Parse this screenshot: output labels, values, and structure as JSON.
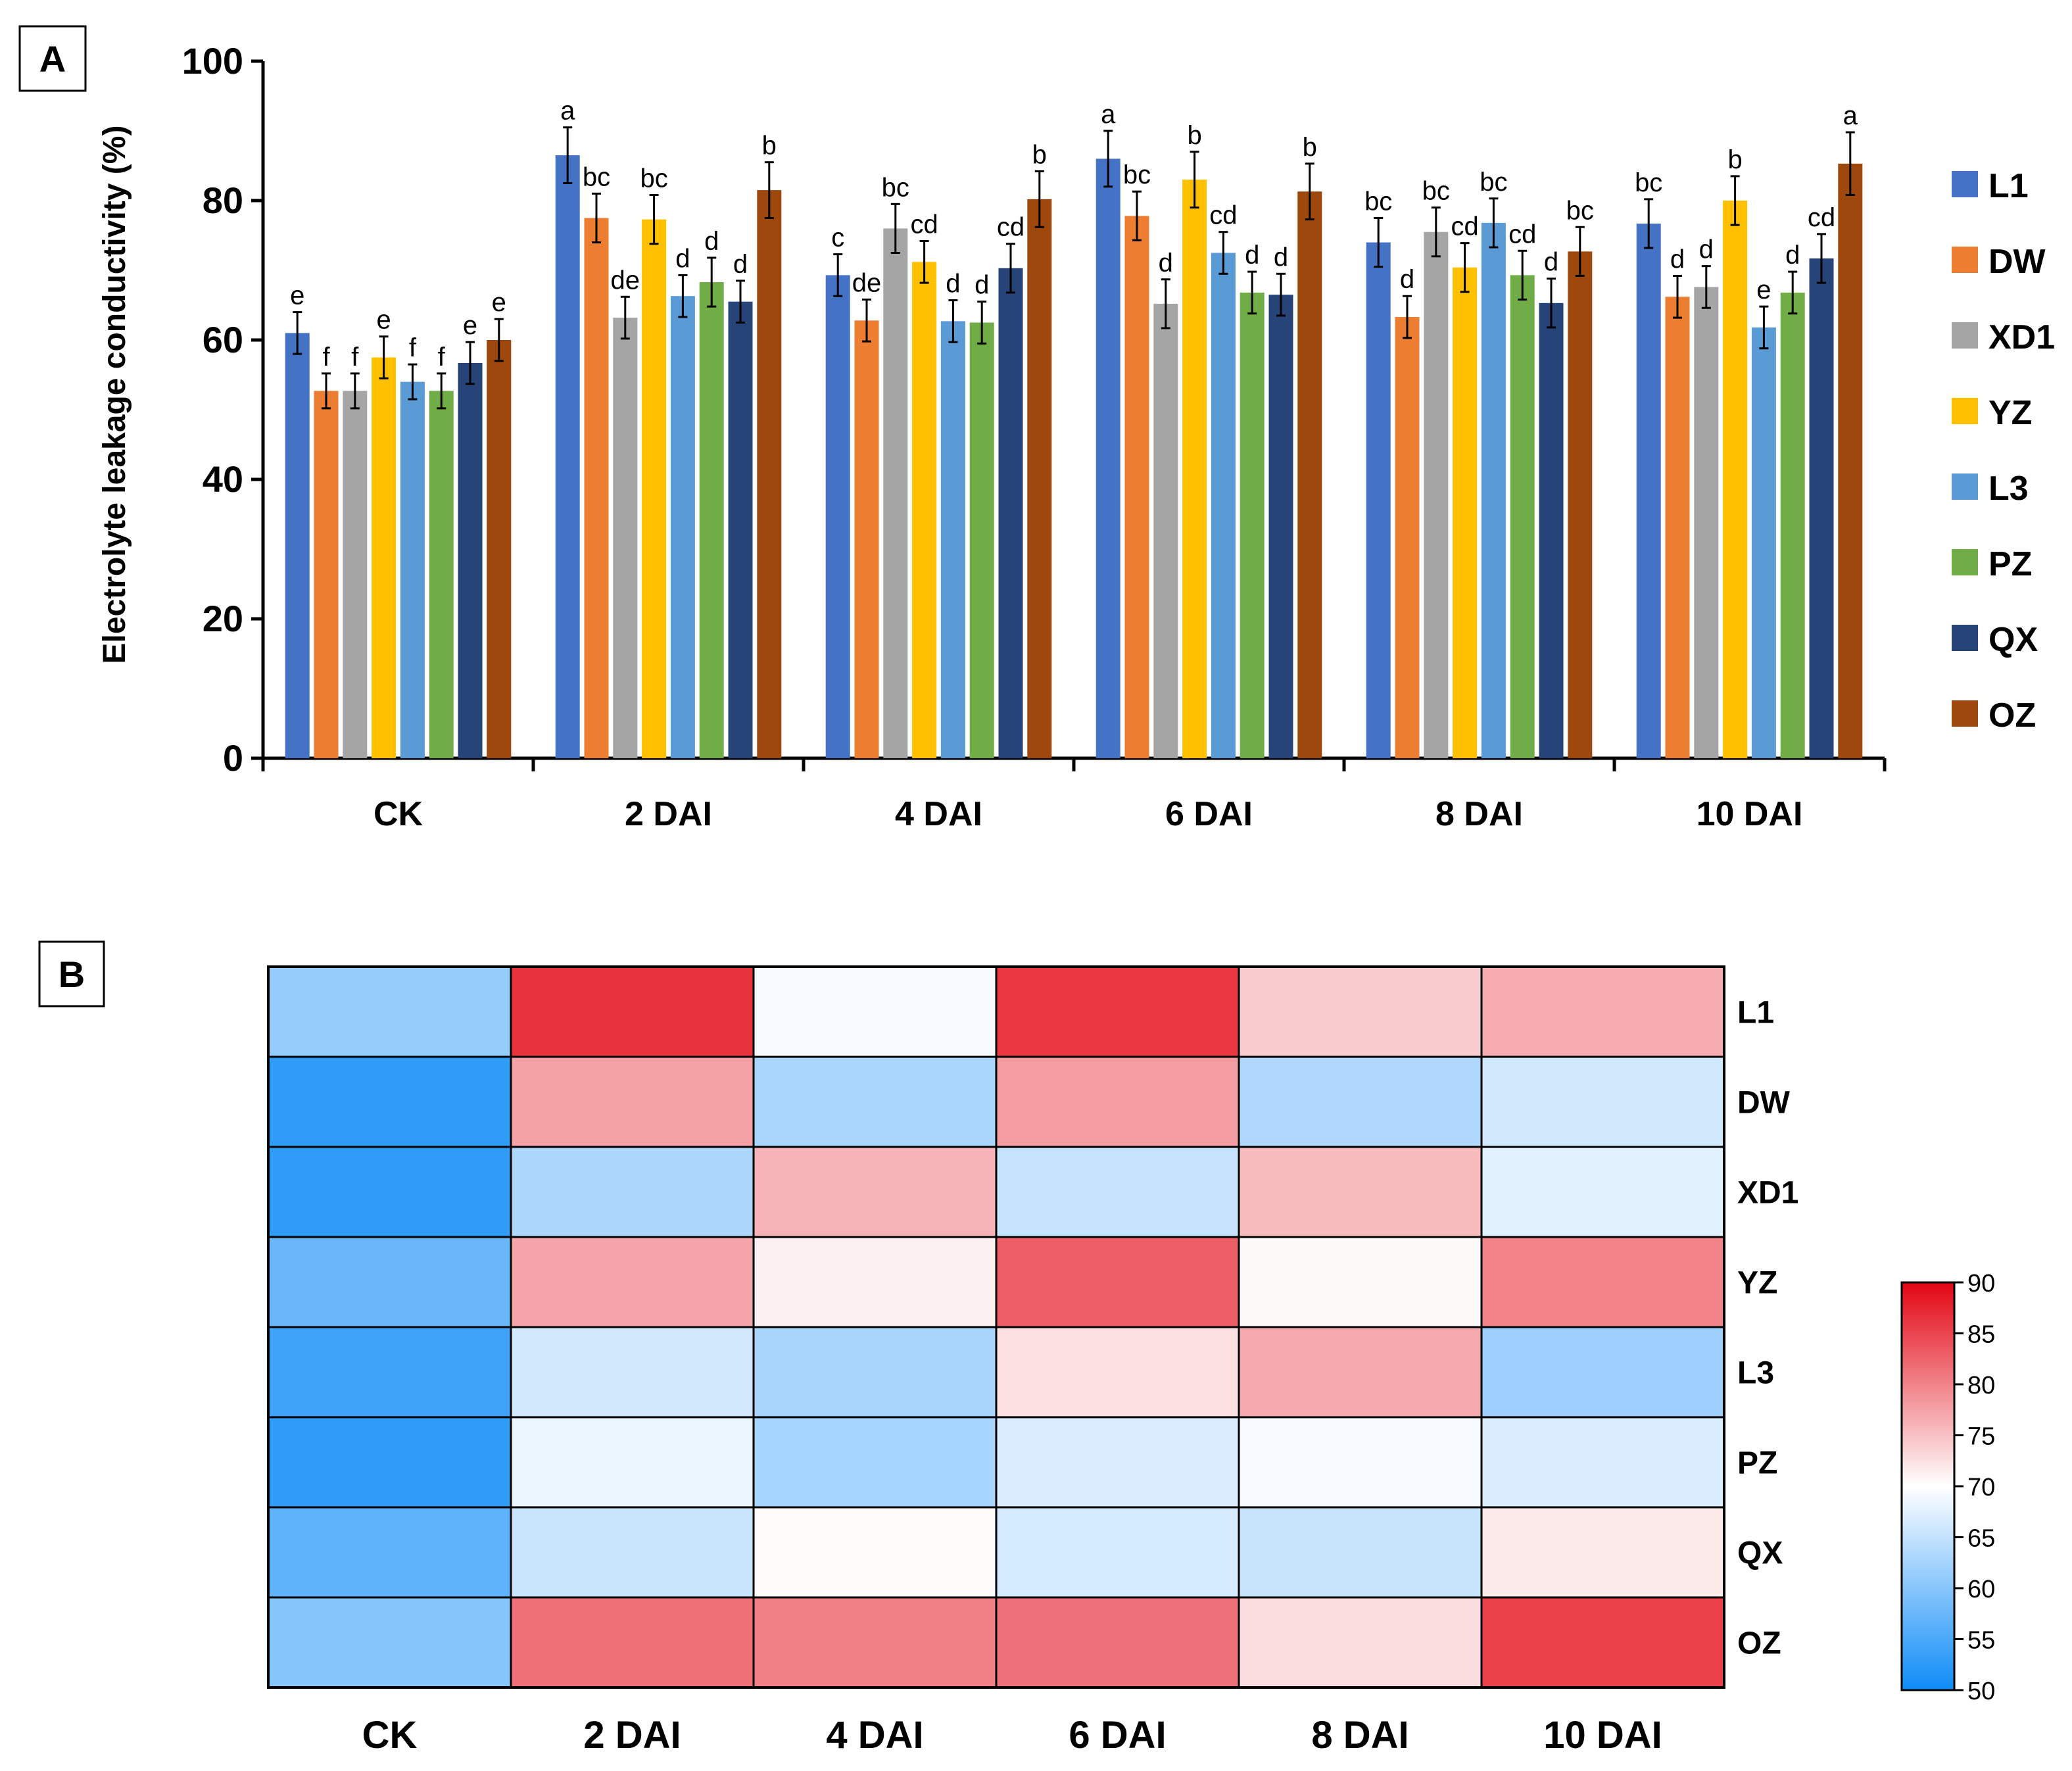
{
  "panel_a": {
    "label": "A"
  },
  "panel_b": {
    "label": "B"
  },
  "chart_data": [
    {
      "type": "bar",
      "ylabel": "Electrolyte leakage conductivity (%)",
      "ylim": [
        0,
        100
      ],
      "yticks": [
        0,
        20,
        40,
        60,
        80,
        100
      ],
      "legend_position": "right",
      "grid": false,
      "categories": [
        "CK",
        "2 DAI",
        "4 DAI",
        "6 DAI",
        "8 DAI",
        "10 DAI"
      ],
      "series": [
        {
          "name": "L1",
          "color": "#4472C4",
          "values": [
            61,
            86.5,
            69.3,
            86,
            74,
            76.7
          ],
          "errors": [
            3,
            4,
            3,
            4,
            3.5,
            3.5
          ],
          "letters": [
            "e",
            "a",
            "c",
            "a",
            "bc",
            "bc"
          ]
        },
        {
          "name": "DW",
          "color": "#ED7D31",
          "values": [
            52.7,
            77.5,
            62.8,
            77.8,
            63.3,
            66.2
          ],
          "errors": [
            2.5,
            3.5,
            3,
            3.5,
            3,
            3
          ],
          "letters": [
            "f",
            "bc",
            "de",
            "bc",
            "d",
            "d"
          ]
        },
        {
          "name": "XD1",
          "color": "#A5A5A5",
          "values": [
            52.7,
            63.2,
            76,
            65.2,
            75.5,
            67.6
          ],
          "errors": [
            2.5,
            3,
            3.5,
            3.5,
            3.5,
            3
          ],
          "letters": [
            "f",
            "de",
            "bc",
            "d",
            "bc",
            "d"
          ]
        },
        {
          "name": "YZ",
          "color": "#FFC000",
          "values": [
            57.5,
            77.3,
            71.2,
            83,
            70.4,
            80
          ],
          "errors": [
            3,
            3.5,
            3,
            4,
            3.5,
            3.5
          ],
          "letters": [
            "e",
            "bc",
            "cd",
            "b",
            "cd",
            "b"
          ]
        },
        {
          "name": "L3",
          "color": "#5B9BD5",
          "values": [
            54,
            66.3,
            62.7,
            72.5,
            76.8,
            61.8
          ],
          "errors": [
            2.5,
            3,
            3,
            3,
            3.5,
            3
          ],
          "letters": [
            "f",
            "d",
            "d",
            "cd",
            "bc",
            "e"
          ]
        },
        {
          "name": "PZ",
          "color": "#70AD47",
          "values": [
            52.7,
            68.3,
            62.5,
            66.8,
            69.3,
            66.8
          ],
          "errors": [
            2.5,
            3.5,
            3,
            3,
            3.5,
            3
          ],
          "letters": [
            "f",
            "d",
            "d",
            "d",
            "cd",
            "d"
          ]
        },
        {
          "name": "QX",
          "color": "#264478",
          "values": [
            56.7,
            65.5,
            70.3,
            66.5,
            65.3,
            71.7
          ],
          "errors": [
            3,
            3,
            3.5,
            3,
            3.5,
            3.5
          ],
          "letters": [
            "e",
            "d",
            "cd",
            "d",
            "d",
            "cd"
          ]
        },
        {
          "name": "OZ",
          "color": "#9E480E",
          "values": [
            60,
            81.5,
            80.2,
            81.3,
            72.7,
            85.3
          ],
          "errors": [
            3,
            4,
            4,
            4,
            3.5,
            4.5
          ],
          "letters": [
            "e",
            "b",
            "b",
            "b",
            "bc",
            "a"
          ]
        }
      ]
    },
    {
      "type": "heatmap",
      "x": [
        "CK",
        "2 DAI",
        "4 DAI",
        "6 DAI",
        "8 DAI",
        "10 DAI"
      ],
      "y": [
        "L1",
        "DW",
        "XD1",
        "YZ",
        "L3",
        "PZ",
        "QX",
        "OZ"
      ],
      "values": [
        [
          61,
          86.5,
          69.3,
          86,
          74,
          76.7
        ],
        [
          52.7,
          77.5,
          62.8,
          77.8,
          63.3,
          66.2
        ],
        [
          52.7,
          63.2,
          76,
          65.2,
          75.5,
          67.6
        ],
        [
          57.5,
          77.3,
          71.2,
          83,
          70.4,
          80
        ],
        [
          54,
          66.3,
          62.7,
          72.5,
          76.8,
          61.8
        ],
        [
          52.7,
          68.3,
          62.5,
          66.8,
          69.3,
          66.8
        ],
        [
          56.7,
          65.5,
          70.3,
          66.5,
          65.3,
          71.7
        ],
        [
          60,
          81.5,
          80.2,
          81.3,
          72.7,
          85.3
        ]
      ],
      "colorbar": {
        "min": 50,
        "max": 90,
        "ticks": [
          50,
          55,
          60,
          65,
          70,
          75,
          80,
          85,
          90
        ],
        "low_color": "#0F8CF7",
        "mid_color": "#FFFFFF",
        "high_color": "#E30613"
      }
    }
  ]
}
